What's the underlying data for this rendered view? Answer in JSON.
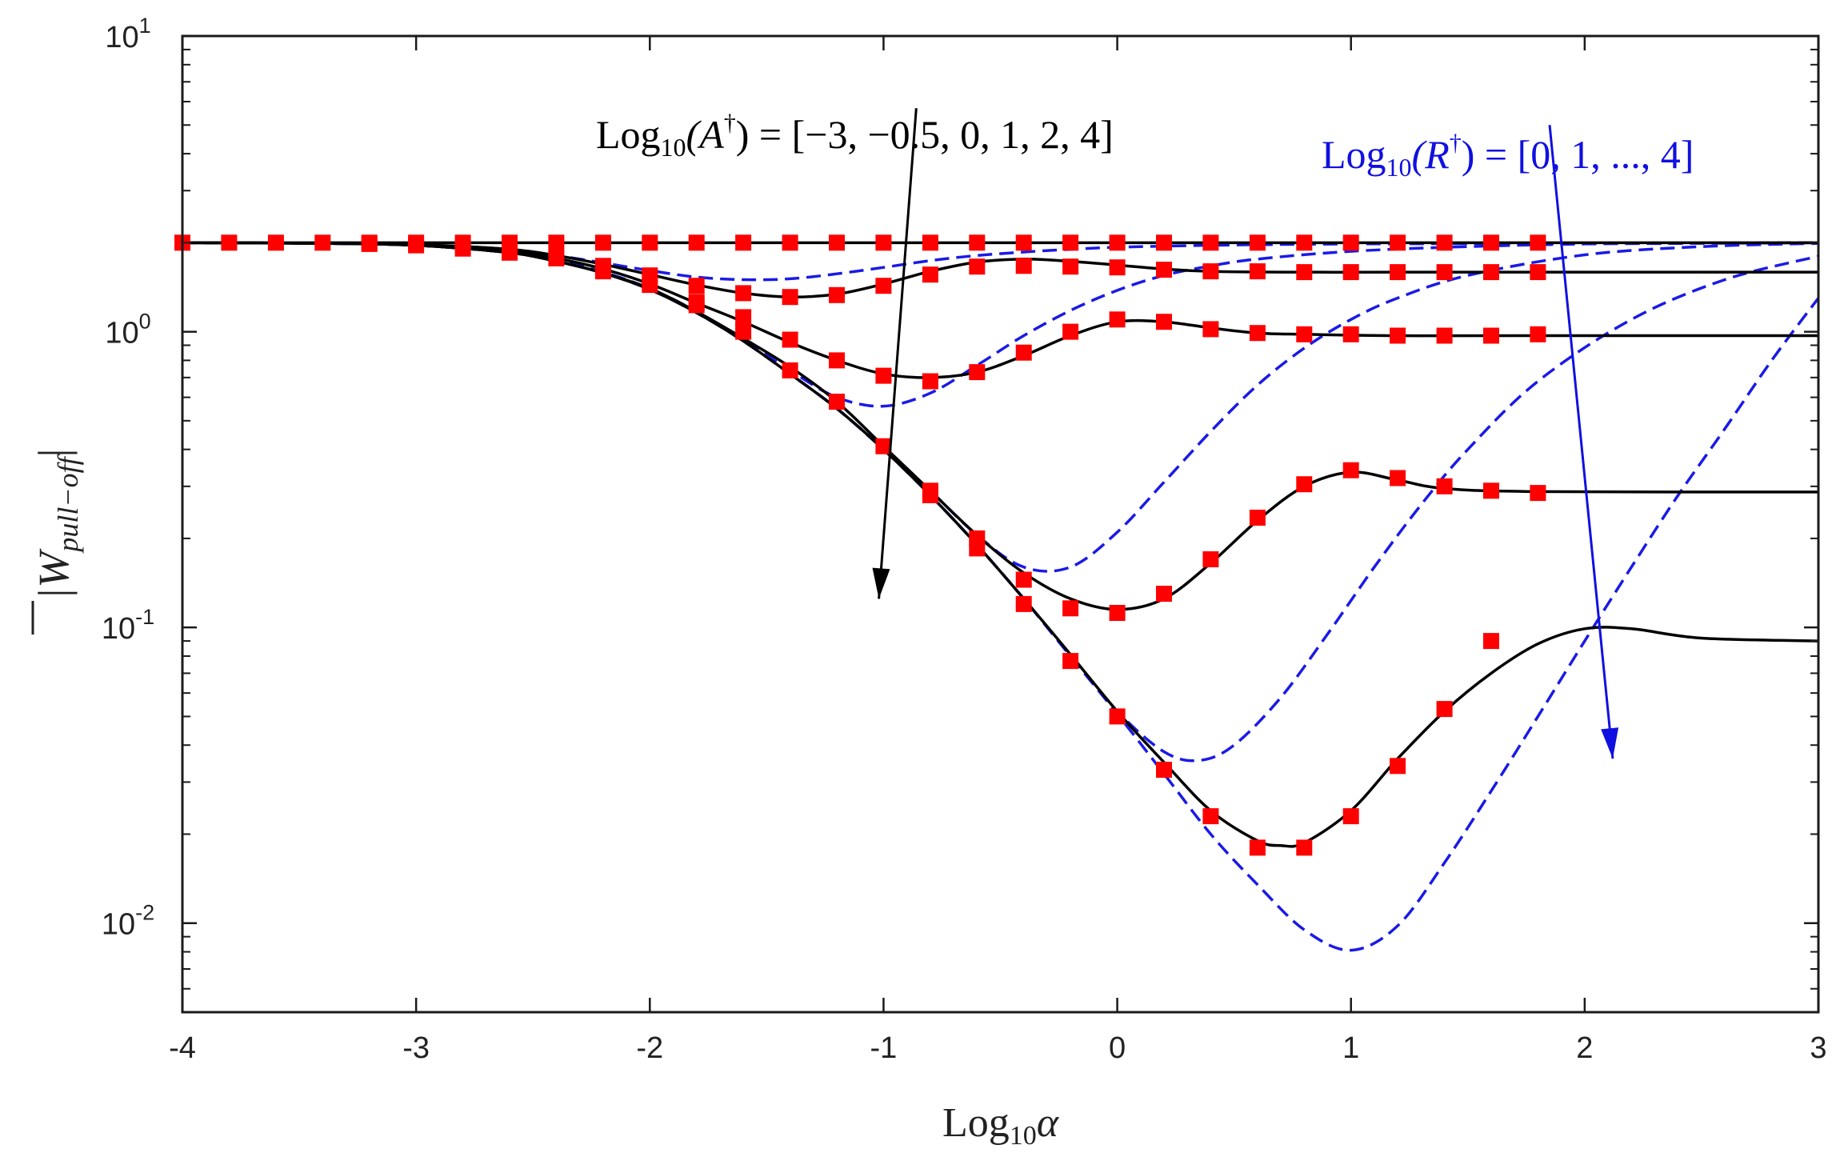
{
  "chart_data": {
    "type": "line",
    "xlabel": "Log",
    "xlabel_sub": "10",
    "xlabel_var": "α",
    "ylabel": "|W",
    "ylabel_sub": "pull−off",
    "ylabel_end": "|",
    "xlim": [
      -4,
      3
    ],
    "ylim": [
      0.005,
      10
    ],
    "yscale": "log",
    "x_ticks": [
      {
        "value": -4,
        "label": "-4"
      },
      {
        "value": -3,
        "label": "-3"
      },
      {
        "value": -2,
        "label": "-2"
      },
      {
        "value": -1,
        "label": "-1"
      },
      {
        "value": 0,
        "label": "0"
      },
      {
        "value": 1,
        "label": "1"
      },
      {
        "value": 2,
        "label": "2"
      },
      {
        "value": 3,
        "label": "3"
      }
    ],
    "y_ticks": [
      {
        "value": 10,
        "base": "10",
        "exp": "1"
      },
      {
        "value": 1,
        "base": "10",
        "exp": "0"
      },
      {
        "value": 0.1,
        "base": "10",
        "exp": "-1"
      },
      {
        "value": 0.01,
        "base": "10",
        "exp": "-2"
      }
    ],
    "annotations": {
      "a_label": {
        "pre": "Log",
        "sub": "10",
        "mid": "(A",
        "sup": "†",
        "post": ") = [−3, −0.5, 0, 1, 2, 4]",
        "color": "#000000"
      },
      "r_label": {
        "pre": "Log",
        "sub": "10",
        "mid": "(R",
        "sup": "†",
        "post": ") = [0, 1, ..., 4]",
        "color": "#1010e0"
      }
    },
    "arrows": [
      {
        "color": "#000000",
        "from": [
          -0.86,
          5.7
        ],
        "to": [
          -1.02,
          0.125
        ]
      },
      {
        "color": "#1010e0",
        "from": [
          1.85,
          5.0
        ],
        "to": [
          2.12,
          0.036
        ]
      }
    ],
    "series_solid": [
      {
        "name": "Log10(A†) = 4",
        "color": "#000000",
        "x": [
          -4,
          3
        ],
        "y": [
          2.0,
          2.0
        ]
      },
      {
        "name": "Log10(A†) = 2",
        "color": "#000000",
        "x": [
          -4,
          -3.4,
          -3,
          -2.6,
          -2.4,
          -2.2,
          -2.0,
          -1.8,
          -1.6,
          -1.4,
          -1.2,
          -1.0,
          -0.8,
          -0.6,
          -0.4,
          -0.2,
          0,
          0.2,
          0.4,
          0.8,
          1.2,
          1.8,
          3
        ],
        "y": [
          2.0,
          1.99,
          1.97,
          1.9,
          1.81,
          1.69,
          1.56,
          1.44,
          1.35,
          1.31,
          1.34,
          1.45,
          1.6,
          1.72,
          1.76,
          1.73,
          1.68,
          1.63,
          1.6,
          1.59,
          1.59,
          1.59,
          1.59
        ]
      },
      {
        "name": "Log10(A†) = 1",
        "color": "#000000",
        "x": [
          -4,
          -3.4,
          -3,
          -2.6,
          -2.4,
          -2.2,
          -2.0,
          -1.8,
          -1.6,
          -1.4,
          -1.2,
          -1.0,
          -0.8,
          -0.6,
          -0.4,
          -0.2,
          0,
          0.2,
          0.4,
          0.6,
          0.8,
          1.2,
          1.8,
          3
        ],
        "y": [
          2.0,
          1.99,
          1.96,
          1.87,
          1.77,
          1.63,
          1.45,
          1.25,
          1.08,
          0.92,
          0.8,
          0.72,
          0.7,
          0.73,
          0.83,
          0.97,
          1.08,
          1.08,
          1.03,
          0.99,
          0.98,
          0.97,
          0.97,
          0.97
        ]
      },
      {
        "name": "Log10(A†) = 0",
        "color": "#000000",
        "x": [
          -4,
          -3.4,
          -3,
          -2.6,
          -2.4,
          -2.2,
          -2.0,
          -1.8,
          -1.6,
          -1.4,
          -1.2,
          -1.0,
          -0.8,
          -0.6,
          -0.4,
          -0.2,
          0,
          0.2,
          0.4,
          0.6,
          0.8,
          1.0,
          1.2,
          1.4,
          1.8,
          3
        ],
        "y": [
          2.0,
          1.99,
          1.96,
          1.85,
          1.73,
          1.58,
          1.4,
          1.17,
          0.95,
          0.76,
          0.58,
          0.41,
          0.29,
          0.205,
          0.153,
          0.125,
          0.115,
          0.125,
          0.165,
          0.23,
          0.3,
          0.335,
          0.315,
          0.295,
          0.288,
          0.287
        ]
      },
      {
        "name": "Log10(A†) = -0.5",
        "color": "#000000",
        "x": [
          -4,
          -3.4,
          -3,
          -2.6,
          -2.4,
          -2.2,
          -2.0,
          -1.8,
          -1.6,
          -1.4,
          -1.2,
          -1.0,
          -0.8,
          -0.6,
          -0.4,
          -0.2,
          0,
          0.2,
          0.4,
          0.6,
          0.7,
          0.8,
          1.0,
          1.2,
          1.4,
          1.6,
          1.8,
          2.0,
          2.2,
          2.5,
          3
        ],
        "y": [
          2.0,
          1.99,
          1.96,
          1.85,
          1.73,
          1.58,
          1.39,
          1.16,
          0.93,
          0.72,
          0.55,
          0.4,
          0.28,
          0.19,
          0.125,
          0.081,
          0.052,
          0.035,
          0.024,
          0.019,
          0.0183,
          0.0187,
          0.024,
          0.036,
          0.052,
          0.07,
          0.088,
          0.099,
          0.099,
          0.092,
          0.09
        ]
      }
    ],
    "series_dashed": [
      {
        "name": "Log10(R†) = 0",
        "color": "#1a1ae6",
        "x": [
          -4,
          -3.4,
          -3,
          -2.6,
          -2.4,
          -2.2,
          -2.0,
          -1.8,
          -1.6,
          -1.4,
          -1.2,
          -1.0,
          -0.8,
          -0.6,
          -0.4,
          -0.2,
          0,
          0.4,
          1.0,
          2.0,
          3
        ],
        "y": [
          2.0,
          1.99,
          1.97,
          1.9,
          1.81,
          1.71,
          1.61,
          1.53,
          1.5,
          1.51,
          1.57,
          1.65,
          1.74,
          1.81,
          1.86,
          1.9,
          1.93,
          1.96,
          1.98,
          1.99,
          2.0
        ]
      },
      {
        "name": "Log10(R†) = 1",
        "color": "#1a1ae6",
        "x": [
          -4,
          -3.4,
          -3,
          -2.6,
          -2.4,
          -2.2,
          -2.0,
          -1.8,
          -1.6,
          -1.4,
          -1.2,
          -1.0,
          -0.8,
          -0.6,
          -0.4,
          -0.2,
          0,
          0.2,
          0.4,
          0.6,
          1.0,
          1.5,
          2.0,
          2.5,
          3
        ],
        "y": [
          2.0,
          1.99,
          1.96,
          1.86,
          1.74,
          1.59,
          1.4,
          1.17,
          0.94,
          0.74,
          0.6,
          0.56,
          0.62,
          0.77,
          0.97,
          1.18,
          1.38,
          1.55,
          1.67,
          1.76,
          1.87,
          1.94,
          1.98,
          1.99,
          2.0
        ]
      },
      {
        "name": "Log10(R†) = 2",
        "color": "#1a1ae6",
        "x": [
          -4,
          -3.4,
          -3,
          -2.6,
          -2.4,
          -2.2,
          -2.0,
          -1.8,
          -1.6,
          -1.4,
          -1.2,
          -1.0,
          -0.8,
          -0.6,
          -0.4,
          -0.2,
          0,
          0.2,
          0.4,
          0.6,
          0.8,
          1.0,
          1.2,
          1.5,
          2.0,
          2.5,
          3
        ],
        "y": [
          2.0,
          1.99,
          1.96,
          1.85,
          1.73,
          1.58,
          1.39,
          1.16,
          0.93,
          0.72,
          0.55,
          0.4,
          0.29,
          0.205,
          0.16,
          0.16,
          0.21,
          0.31,
          0.46,
          0.66,
          0.88,
          1.1,
          1.3,
          1.55,
          1.82,
          1.94,
          1.99
        ]
      },
      {
        "name": "Log10(R†) = 3",
        "color": "#1a1ae6",
        "x": [
          -4,
          -3.4,
          -3,
          -2.6,
          -2.4,
          -2.2,
          -2.0,
          -1.8,
          -1.6,
          -1.4,
          -1.2,
          -1.0,
          -0.8,
          -0.6,
          -0.4,
          -0.2,
          0,
          0.2,
          0.35,
          0.5,
          0.7,
          0.9,
          1.1,
          1.3,
          1.5,
          1.8,
          2.2,
          2.6,
          3
        ],
        "y": [
          2.0,
          1.99,
          1.96,
          1.85,
          1.73,
          1.58,
          1.39,
          1.16,
          0.93,
          0.72,
          0.55,
          0.4,
          0.28,
          0.19,
          0.125,
          0.08,
          0.052,
          0.038,
          0.0355,
          0.04,
          0.058,
          0.095,
          0.16,
          0.26,
          0.4,
          0.68,
          1.1,
          1.5,
          1.8
        ]
      },
      {
        "name": "Log10(R†) = 4",
        "color": "#1a1ae6",
        "x": [
          -4,
          -3.4,
          -3,
          -2.6,
          -2.4,
          -2.2,
          -2.0,
          -1.8,
          -1.6,
          -1.4,
          -1.2,
          -1.0,
          -0.8,
          -0.6,
          -0.4,
          -0.2,
          0,
          0.2,
          0.4,
          0.6,
          0.8,
          1.0,
          1.2,
          1.4,
          1.6,
          1.8,
          2.0,
          2.2,
          2.4,
          2.6,
          2.8,
          3
        ],
        "y": [
          2.0,
          1.99,
          1.96,
          1.85,
          1.73,
          1.58,
          1.39,
          1.16,
          0.93,
          0.72,
          0.55,
          0.4,
          0.28,
          0.19,
          0.125,
          0.08,
          0.051,
          0.032,
          0.02,
          0.0135,
          0.0095,
          0.0081,
          0.0098,
          0.016,
          0.028,
          0.05,
          0.09,
          0.16,
          0.28,
          0.47,
          0.8,
          1.3
        ]
      }
    ],
    "markers": {
      "color": "#ff0000",
      "sets": [
        {
          "name": "A† = 4 markers",
          "x": [
            -4,
            -3.8,
            -3.6,
            -3.4,
            -3.2,
            -3.0,
            -2.8,
            -2.6,
            -2.4,
            -2.2,
            -2.0,
            -1.8,
            -1.6,
            -1.4,
            -1.2,
            -1.0,
            -0.8,
            -0.6,
            -0.4,
            -0.2,
            0,
            0.2,
            0.4,
            0.6,
            0.8,
            1.0,
            1.2,
            1.4,
            1.6,
            1.8
          ],
          "y": [
            2.0,
            2.0,
            2.0,
            2.0,
            2.0,
            2.0,
            2.0,
            2.0,
            2.0,
            2.0,
            2.0,
            2.0,
            2.0,
            2.0,
            2.0,
            2.0,
            2.0,
            2.0,
            2.0,
            2.0,
            2.0,
            2.0,
            2.0,
            2.0,
            2.0,
            2.0,
            2.0,
            2.0,
            2.0,
            2.0
          ]
        },
        {
          "name": "A† = 2 markers",
          "x": [
            -3.2,
            -3.0,
            -2.8,
            -2.6,
            -2.4,
            -2.2,
            -2.0,
            -1.8,
            -1.6,
            -1.4,
            -1.2,
            -1.0,
            -0.8,
            -0.6,
            -0.4,
            -0.2,
            0,
            0.2,
            0.4,
            0.6,
            0.8,
            1.0,
            1.2,
            1.4,
            1.6,
            1.8
          ],
          "y": [
            1.98,
            1.96,
            1.91,
            1.85,
            1.77,
            1.67,
            1.55,
            1.43,
            1.35,
            1.31,
            1.33,
            1.43,
            1.56,
            1.66,
            1.67,
            1.66,
            1.65,
            1.62,
            1.6,
            1.6,
            1.59,
            1.59,
            1.59,
            1.59,
            1.59,
            1.59
          ]
        },
        {
          "name": "A† = 1 markers",
          "x": [
            -2.2,
            -2.0,
            -1.8,
            -1.6,
            -1.4,
            -1.2,
            -1.0,
            -0.8,
            -0.6,
            -0.4,
            -0.2,
            0,
            0.2,
            0.4,
            0.6,
            0.8,
            1.0,
            1.2,
            1.4,
            1.6,
            1.8
          ],
          "y": [
            1.6,
            1.44,
            1.26,
            1.12,
            0.94,
            0.8,
            0.71,
            0.68,
            0.73,
            0.85,
            1.0,
            1.1,
            1.08,
            1.02,
            0.99,
            0.98,
            0.98,
            0.97,
            0.97,
            0.97,
            0.98
          ]
        },
        {
          "name": "A† = 0 markers",
          "x": [
            -1.8,
            -1.6,
            -1.2,
            -0.8,
            -0.6,
            -0.4,
            -0.2,
            0,
            0.2,
            0.4,
            0.6,
            0.8,
            1.0,
            1.2,
            1.4,
            1.6,
            1.8
          ],
          "y": [
            1.23,
            1.0,
            0.58,
            0.29,
            0.2,
            0.145,
            0.116,
            0.112,
            0.13,
            0.17,
            0.235,
            0.305,
            0.34,
            0.32,
            0.3,
            0.29,
            0.285
          ]
        },
        {
          "name": "A† = -0.5 markers",
          "x": [
            -1.4,
            -1.0,
            -0.8,
            -0.6,
            -0.4,
            -0.2,
            0,
            0.2,
            0.4,
            0.6,
            0.8,
            1.0,
            1.2,
            1.4,
            1.6
          ],
          "y": [
            0.74,
            0.41,
            0.28,
            0.185,
            0.12,
            0.077,
            0.05,
            0.033,
            0.023,
            0.018,
            0.018,
            0.023,
            0.034,
            0.053,
            0.09
          ]
        }
      ]
    }
  }
}
